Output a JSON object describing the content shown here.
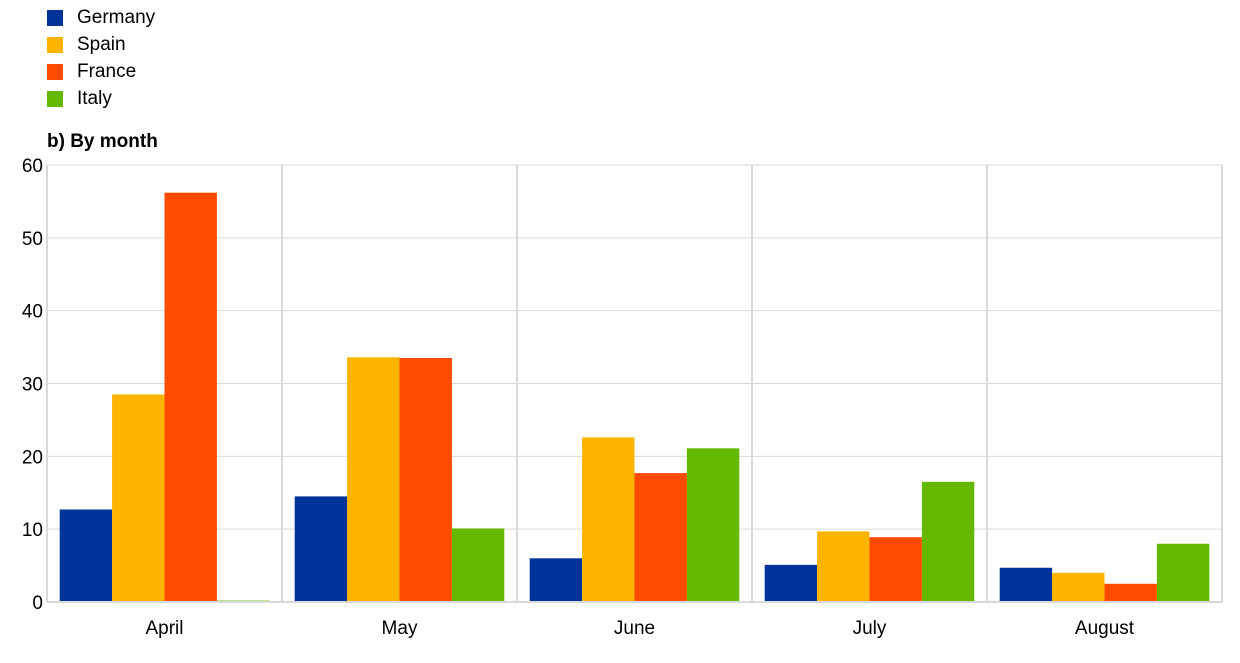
{
  "chart_data": {
    "type": "bar",
    "subtitle": "b) By month",
    "categories": [
      "April",
      "May",
      "June",
      "July",
      "August"
    ],
    "series": [
      {
        "name": "Germany",
        "color": "#003399",
        "values": [
          12.7,
          14.5,
          6.0,
          5.1,
          4.7
        ]
      },
      {
        "name": "Spain",
        "color": "#FFB400",
        "values": [
          28.5,
          33.6,
          22.6,
          9.7,
          4.0
        ]
      },
      {
        "name": "France",
        "color": "#FF4B00",
        "values": [
          56.2,
          33.5,
          17.7,
          8.9,
          2.5
        ]
      },
      {
        "name": "Italy",
        "color": "#65B800",
        "values": [
          0.2,
          10.1,
          21.1,
          16.5,
          8.0
        ]
      }
    ],
    "ylim": [
      0,
      60
    ],
    "yticks": [
      0,
      10,
      20,
      30,
      40,
      50,
      60
    ],
    "grid": true,
    "legend_position": "top-left"
  }
}
